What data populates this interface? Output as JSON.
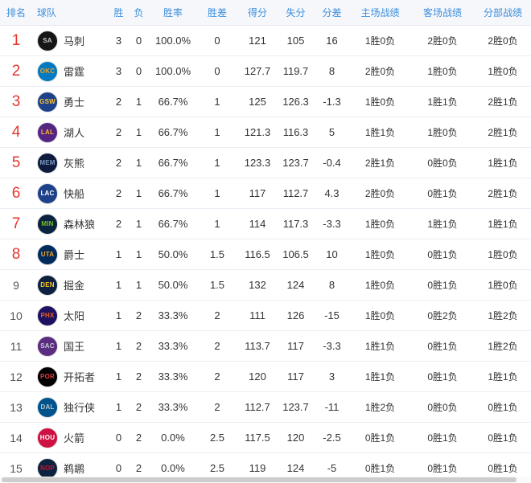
{
  "colors": {
    "header_text": "#3d8fdd",
    "header_bg": "#f6f7fb",
    "rank_top": "#e8352e",
    "rank_normal": "#555555",
    "row_border": "#ebeef5"
  },
  "table": {
    "top_rank_cutoff": 8,
    "columns": [
      {
        "key": "rank",
        "label": "排名"
      },
      {
        "key": "team",
        "label": "球队"
      },
      {
        "key": "win",
        "label": "胜"
      },
      {
        "key": "loss",
        "label": "负"
      },
      {
        "key": "pct",
        "label": "胜率"
      },
      {
        "key": "gb",
        "label": "胜差"
      },
      {
        "key": "pf",
        "label": "得分"
      },
      {
        "key": "pa",
        "label": "失分"
      },
      {
        "key": "diff",
        "label": "分差"
      },
      {
        "key": "home",
        "label": "主场战绩"
      },
      {
        "key": "away",
        "label": "客场战绩"
      },
      {
        "key": "division",
        "label": "分部战绩"
      }
    ],
    "rows": [
      {
        "rank": "1",
        "team": "马刺",
        "logo": {
          "abbr": "SA",
          "bg": "#161616",
          "fg": "#c4ced4"
        },
        "win": "3",
        "loss": "0",
        "pct": "100.0%",
        "gb": "0",
        "pf": "121",
        "pa": "105",
        "diff": "16",
        "home": "1胜0负",
        "away": "2胜0负",
        "division": "2胜0负"
      },
      {
        "rank": "2",
        "team": "雷霆",
        "logo": {
          "abbr": "OKC",
          "bg": "#007ac1",
          "fg": "#f8a01c"
        },
        "win": "3",
        "loss": "0",
        "pct": "100.0%",
        "gb": "0",
        "pf": "127.7",
        "pa": "119.7",
        "diff": "8",
        "home": "2胜0负",
        "away": "1胜0负",
        "division": "1胜0负"
      },
      {
        "rank": "3",
        "team": "勇士",
        "logo": {
          "abbr": "GSW",
          "bg": "#1d428a",
          "fg": "#ffc72c"
        },
        "win": "2",
        "loss": "1",
        "pct": "66.7%",
        "gb": "1",
        "pf": "125",
        "pa": "126.3",
        "diff": "-1.3",
        "home": "1胜0负",
        "away": "1胜1负",
        "division": "2胜1负"
      },
      {
        "rank": "4",
        "team": "湖人",
        "logo": {
          "abbr": "LAL",
          "bg": "#552583",
          "fg": "#fdb927"
        },
        "win": "2",
        "loss": "1",
        "pct": "66.7%",
        "gb": "1",
        "pf": "121.3",
        "pa": "116.3",
        "diff": "5",
        "home": "1胜1负",
        "away": "1胜0负",
        "division": "2胜1负"
      },
      {
        "rank": "5",
        "team": "灰熊",
        "logo": {
          "abbr": "MEM",
          "bg": "#0f1b3d",
          "fg": "#7d9bc1"
        },
        "win": "2",
        "loss": "1",
        "pct": "66.7%",
        "gb": "1",
        "pf": "123.3",
        "pa": "123.7",
        "diff": "-0.4",
        "home": "2胜1负",
        "away": "0胜0负",
        "division": "1胜1负"
      },
      {
        "rank": "6",
        "team": "快船",
        "logo": {
          "abbr": "LAC",
          "bg": "#1d428a",
          "fg": "#ffffff"
        },
        "win": "2",
        "loss": "1",
        "pct": "66.7%",
        "gb": "1",
        "pf": "117",
        "pa": "112.7",
        "diff": "4.3",
        "home": "2胜0负",
        "away": "0胜1负",
        "division": "2胜1负"
      },
      {
        "rank": "7",
        "team": "森林狼",
        "logo": {
          "abbr": "MIN",
          "bg": "#0c2340",
          "fg": "#78be20"
        },
        "win": "2",
        "loss": "1",
        "pct": "66.7%",
        "gb": "1",
        "pf": "114",
        "pa": "117.3",
        "diff": "-3.3",
        "home": "1胜0负",
        "away": "1胜1负",
        "division": "1胜1负"
      },
      {
        "rank": "8",
        "team": "爵士",
        "logo": {
          "abbr": "UTA",
          "bg": "#002b5c",
          "fg": "#f9a01b"
        },
        "win": "1",
        "loss": "1",
        "pct": "50.0%",
        "gb": "1.5",
        "pf": "116.5",
        "pa": "106.5",
        "diff": "10",
        "home": "1胜0负",
        "away": "0胜1负",
        "division": "1胜0负"
      },
      {
        "rank": "9",
        "team": "掘金",
        "logo": {
          "abbr": "DEN",
          "bg": "#0e2240",
          "fg": "#fec524"
        },
        "win": "1",
        "loss": "1",
        "pct": "50.0%",
        "gb": "1.5",
        "pf": "132",
        "pa": "124",
        "diff": "8",
        "home": "1胜0负",
        "away": "0胜1负",
        "division": "1胜0负"
      },
      {
        "rank": "10",
        "team": "太阳",
        "logo": {
          "abbr": "PHX",
          "bg": "#1d1160",
          "fg": "#e56020"
        },
        "win": "1",
        "loss": "2",
        "pct": "33.3%",
        "gb": "2",
        "pf": "111",
        "pa": "126",
        "diff": "-15",
        "home": "1胜0负",
        "away": "0胜2负",
        "division": "1胜2负"
      },
      {
        "rank": "11",
        "team": "国王",
        "logo": {
          "abbr": "SAC",
          "bg": "#5a2d81",
          "fg": "#c4ced4"
        },
        "win": "1",
        "loss": "2",
        "pct": "33.3%",
        "gb": "2",
        "pf": "113.7",
        "pa": "117",
        "diff": "-3.3",
        "home": "1胜1负",
        "away": "0胜1负",
        "division": "1胜2负"
      },
      {
        "rank": "12",
        "team": "开拓者",
        "logo": {
          "abbr": "POR",
          "bg": "#000000",
          "fg": "#e03a3e"
        },
        "win": "1",
        "loss": "2",
        "pct": "33.3%",
        "gb": "2",
        "pf": "120",
        "pa": "117",
        "diff": "3",
        "home": "1胜1负",
        "away": "0胜1负",
        "division": "1胜1负"
      },
      {
        "rank": "13",
        "team": "独行侠",
        "logo": {
          "abbr": "DAL",
          "bg": "#00538c",
          "fg": "#b8c4ca"
        },
        "win": "1",
        "loss": "2",
        "pct": "33.3%",
        "gb": "2",
        "pf": "112.7",
        "pa": "123.7",
        "diff": "-11",
        "home": "1胜2负",
        "away": "0胜0负",
        "division": "0胜1负"
      },
      {
        "rank": "14",
        "team": "火箭",
        "logo": {
          "abbr": "HOU",
          "bg": "#ce1141",
          "fg": "#ffffff"
        },
        "win": "0",
        "loss": "2",
        "pct": "0.0%",
        "gb": "2.5",
        "pf": "117.5",
        "pa": "120",
        "diff": "-2.5",
        "home": "0胜1负",
        "away": "0胜1负",
        "division": "0胜1负"
      },
      {
        "rank": "15",
        "team": "鹈鹕",
        "logo": {
          "abbr": "NOP",
          "bg": "#0c2340",
          "fg": "#c8102e"
        },
        "win": "0",
        "loss": "2",
        "pct": "0.0%",
        "gb": "2.5",
        "pf": "119",
        "pa": "124",
        "diff": "-5",
        "home": "0胜1负",
        "away": "0胜1负",
        "division": "0胜1负"
      }
    ]
  },
  "scrollbar": {
    "orientation": "horizontal"
  }
}
